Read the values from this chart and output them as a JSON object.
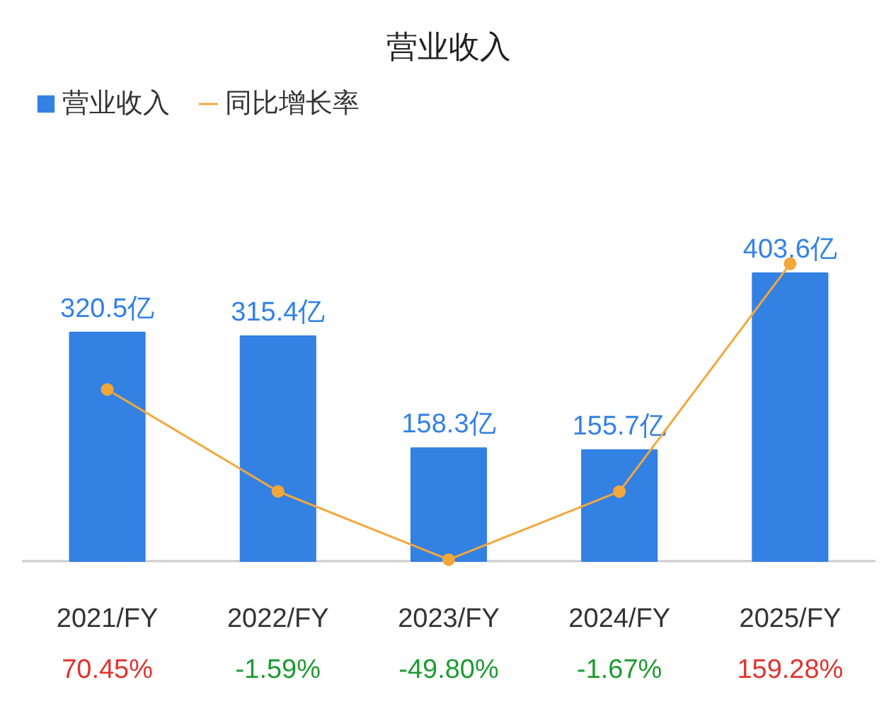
{
  "chart_data": {
    "type": "bar",
    "title": "营业收入",
    "categories": [
      "2021/FY",
      "2022/FY",
      "2023/FY",
      "2024/FY",
      "2025/FY"
    ],
    "series": [
      {
        "name": "营业收入",
        "color": "#3381e3",
        "values": [
          320.5,
          315.4,
          158.3,
          155.7,
          403.6
        ],
        "value_labels": [
          "320.5亿",
          "315.4亿",
          "158.3亿",
          "155.7亿",
          "403.6亿"
        ]
      },
      {
        "name": "同比增长率",
        "type": "line",
        "axis": "y2",
        "color": "#f3a73b",
        "values": [
          70.45,
          -1.59,
          -49.8,
          -1.67,
          159.28
        ],
        "value_labels": [
          "70.45%",
          "-1.59%",
          "-49.80%",
          "-1.67%",
          "159.28%"
        ]
      }
    ],
    "tick_labels": "x",
    "grid": false,
    "legend": "top left",
    "marker": "circle",
    "line_style": "solid"
  }
}
